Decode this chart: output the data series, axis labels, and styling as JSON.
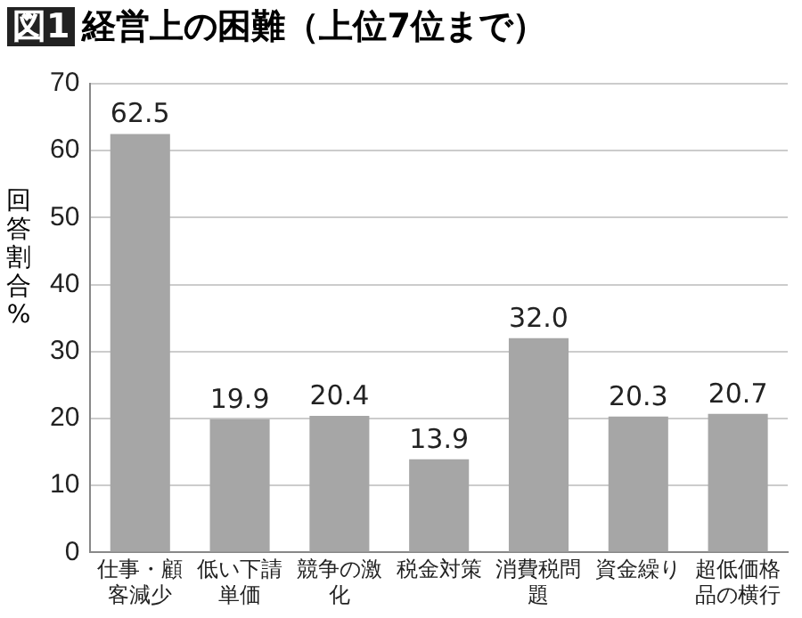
{
  "chart_data": {
    "type": "bar",
    "title": "図1 経営上の困難（上位7位まで）",
    "ylabel": "回答割合%",
    "categories": [
      "仕事・顧客減少",
      "低い下請単価",
      "競争の激化",
      "税金対策",
      "消費税問題",
      "資金繰り",
      "超低価格品の横行"
    ],
    "values": [
      62.5,
      19.9,
      20.4,
      13.9,
      32.0,
      20.3,
      20.7
    ],
    "value_labels": [
      "62.5",
      "19.9",
      "20.4",
      "13.9",
      "32.0",
      "20.3",
      "20.7"
    ],
    "color": "#a6a6a6",
    "ylim": [
      0,
      70
    ],
    "yticks": [
      0,
      10,
      20,
      30,
      40,
      50,
      60,
      70
    ],
    "grid": "y",
    "legend": false
  }
}
